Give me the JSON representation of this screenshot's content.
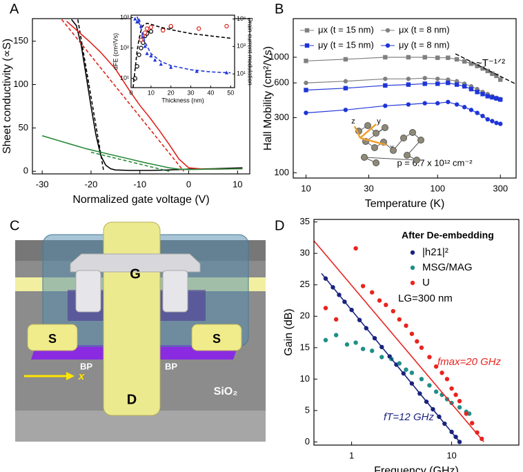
{
  "chart_data": [
    {
      "type": "line",
      "panel_label": "A",
      "xlabel": "Normalized gate voltage (V)",
      "ylabel": "Sheet conductivity (∝S)",
      "xlim": [
        -32,
        12.5
      ],
      "ylim": [
        -3,
        176
      ],
      "xticks": [
        -30,
        -20,
        -10,
        0,
        10
      ],
      "yticks": [
        0,
        50,
        100,
        150
      ],
      "series": [
        {
          "color": "#000000",
          "mode": "line",
          "x": [
            -24,
            -23,
            -22,
            -21,
            -20,
            -19,
            -18,
            -17,
            -16,
            -15,
            -12,
            -8,
            -4,
            0,
            5,
            11
          ],
          "values": [
            175,
            168,
            145,
            110,
            75,
            42,
            18,
            7,
            3,
            1.5,
            1,
            1,
            1.5,
            2.5,
            3,
            4
          ]
        },
        {
          "color": "#000000",
          "mode": "line",
          "dash": true,
          "x": [
            -22.7,
            -17.4
          ],
          "values": [
            175,
            0
          ]
        },
        {
          "color": "#e0201a",
          "mode": "line",
          "x": [
            -25,
            -22,
            -20,
            -18,
            -15,
            -12,
            -10,
            -8,
            -6,
            -4,
            -2,
            0,
            3,
            6,
            11
          ],
          "values": [
            173,
            158,
            148,
            137,
            118,
            92,
            76,
            62,
            47,
            31,
            14,
            4,
            2.5,
            2.5,
            3
          ]
        },
        {
          "color": "#e0201a",
          "mode": "line",
          "dash": true,
          "x": [
            -26,
            -1
          ],
          "values": [
            175,
            0
          ]
        },
        {
          "color": "#2a8a3a",
          "mode": "line",
          "x": [
            -30,
            -27,
            -24,
            -21,
            -18,
            -15,
            -12,
            -9,
            -6,
            -4,
            -2,
            0,
            5,
            11
          ],
          "values": [
            41,
            36,
            31,
            26,
            22,
            18,
            14,
            10,
            6.5,
            4,
            2.5,
            2,
            2.5,
            3
          ]
        },
        {
          "color": "#2a8a3a",
          "mode": "line",
          "dash": true,
          "x": [
            -20,
            -4
          ],
          "values": [
            22,
            0
          ]
        }
      ]
    },
    {
      "type": "scatter",
      "xlabel": "Thickness (nm)",
      "ylabel": "αFE (cm²/Vs)",
      "y2label": "Drain current modulation",
      "xlim": [
        0,
        52
      ],
      "ylim": [
        5,
        1200
      ],
      "y2lim": [
        1,
        190000
      ],
      "ylog": true,
      "y2log": true,
      "xticks": [
        0,
        10,
        20,
        30,
        40,
        50
      ],
      "yticks": [
        {
          "value": 10,
          "label": "10¹"
        },
        {
          "value": 100,
          "label": "10²"
        },
        {
          "value": 1000,
          "label": "10³"
        }
      ],
      "y2ticks": [
        {
          "value": 10,
          "label": "10¹"
        },
        {
          "value": 1000,
          "label": "10³"
        },
        {
          "value": 100000,
          "label": "10⁵"
        }
      ],
      "series": [
        {
          "color": "#000000",
          "mode": "markers",
          "marker": "open-circle",
          "x": [
            2,
            3,
            4,
            5,
            6,
            7,
            8,
            9,
            10,
            16,
            20
          ],
          "values": [
            10,
            25,
            60,
            100,
            150,
            250,
            300,
            400,
            350,
            400,
            500
          ]
        },
        {
          "color": "#000000",
          "mode": "line",
          "dash": true,
          "x": [
            1,
            2,
            3,
            4,
            5,
            6,
            8,
            10,
            15,
            20,
            30,
            40,
            50
          ],
          "values": [
            5,
            20,
            80,
            200,
            380,
            550,
            650,
            600,
            480,
            400,
            300,
            250,
            210
          ]
        },
        {
          "color": "#d8251f",
          "mode": "markers",
          "marker": "open-circle",
          "axis": "y2",
          "x": [
            5,
            6,
            7,
            8,
            10,
            16,
            20,
            34,
            48
          ],
          "values": [
            3000,
            6000,
            10000,
            20000,
            25000,
            15000,
            30000,
            20000,
            30000
          ]
        },
        {
          "color": "#1f35d6",
          "mode": "markers",
          "marker": "triangle",
          "axis": "y2",
          "x": [
            2,
            3,
            4,
            5,
            6,
            7,
            8,
            10,
            12,
            15,
            20,
            33,
            48
          ],
          "values": [
            100000,
            60000,
            80000,
            30000,
            5000,
            1000,
            300,
            200,
            100,
            50,
            30,
            15,
            12
          ]
        },
        {
          "color": "#1f35d6",
          "mode": "line",
          "dash": true,
          "axis": "y2",
          "x": [
            3,
            5,
            7,
            10,
            15,
            20,
            30,
            40,
            50
          ],
          "values": [
            150000,
            20000,
            2000,
            300,
            80,
            40,
            20,
            14,
            12
          ]
        }
      ]
    },
    {
      "type": "line",
      "panel_label": "B",
      "xlabel": "Temperature (K)",
      "ylabel": "Hall Mobility (cm²/Vs)",
      "xlim": [
        8,
        395
      ],
      "ylim": [
        90,
        2160
      ],
      "xlog": true,
      "ylog": true,
      "xticks": [
        10,
        30,
        100,
        300
      ],
      "yticks": [
        100,
        300,
        600,
        1000
      ],
      "legend": "upper left",
      "annotations": [
        "~T⁻¹ᐟ²",
        "p = 6.7 x 10¹² cm⁻²",
        "z",
        "y",
        "x"
      ],
      "series": [
        {
          "name": "μx (t = 15 nm)",
          "color": "#808080",
          "mode": "markers",
          "marker": "square",
          "line": true,
          "x": [
            10,
            20,
            40,
            60,
            80,
            100,
            120,
            140,
            160,
            180,
            200,
            220,
            240,
            260,
            280,
            300
          ],
          "values": [
            930,
            960,
            1000,
            1000,
            1000,
            990,
            990,
            960,
            920,
            880,
            840,
            800,
            760,
            720,
            690,
            640
          ]
        },
        {
          "name": "μx (t = 8 nm)",
          "color": "#808080",
          "mode": "markers",
          "marker": "circle",
          "line": true,
          "x": [
            10,
            20,
            40,
            60,
            80,
            100,
            120,
            140,
            160,
            180,
            200,
            220,
            240,
            260,
            280,
            300
          ],
          "values": [
            600,
            620,
            650,
            650,
            660,
            650,
            640,
            620,
            590,
            560,
            530,
            500,
            480,
            460,
            445,
            435
          ]
        },
        {
          "name": "μy (t = 15 nm)",
          "color": "#1f35d6",
          "mode": "markers",
          "marker": "square",
          "line": true,
          "x": [
            10,
            20,
            40,
            60,
            80,
            100,
            120,
            140,
            160,
            180,
            200,
            220,
            240,
            260,
            280,
            300
          ],
          "values": [
            520,
            540,
            570,
            580,
            590,
            590,
            600,
            580,
            560,
            530,
            500,
            480,
            460,
            450,
            440,
            430
          ]
        },
        {
          "name": "μy (t = 8 nm)",
          "color": "#1f35d6",
          "mode": "markers",
          "marker": "circle",
          "line": true,
          "x": [
            10,
            20,
            40,
            60,
            80,
            100,
            120,
            140,
            160,
            180,
            200,
            220,
            240,
            260,
            280,
            300
          ],
          "values": [
            330,
            350,
            380,
            390,
            400,
            400,
            410,
            390,
            370,
            350,
            330,
            310,
            290,
            280,
            270,
            265
          ]
        }
      ]
    },
    {
      "type": "scatter",
      "panel_label": "D",
      "xlabel": "Frequency (GHz)",
      "ylabel": "Gain (dB)",
      "xlim": [
        0.42,
        47
      ],
      "ylim": [
        -0.5,
        35.4
      ],
      "xlog": true,
      "xticks": [
        1,
        10
      ],
      "yticks": [
        0,
        5,
        10,
        15,
        20,
        25,
        30,
        35
      ],
      "legend": "upper right",
      "legend_title": "After De-embedding",
      "annotations": [
        "LG=300 nm",
        "fmax=20 GHz",
        "fT=12 GHz"
      ],
      "series": [
        {
          "name": "|h21|²",
          "color": "#1a237e",
          "mode": "markers",
          "marker": "circle",
          "x": [
            0.55,
            0.65,
            0.75,
            0.85,
            1,
            1.2,
            1.4,
            1.7,
            2,
            2.4,
            2.8,
            3.3,
            4,
            4.8,
            5.6,
            6.5,
            7.5,
            8.5,
            10,
            11,
            12
          ],
          "values": [
            26,
            24.6,
            23.4,
            22.3,
            21,
            19.4,
            18.1,
            16.5,
            15.1,
            13.6,
            12.3,
            10.9,
            9.3,
            7.7,
            6.4,
            5.2,
            4,
            2.9,
            1.6,
            0.8,
            0
          ]
        },
        {
          "name": "MSG/MAG",
          "color": "#1e8f86",
          "mode": "markers",
          "marker": "circle",
          "x": [
            0.55,
            0.7,
            0.9,
            1.1,
            1.3,
            1.6,
            2,
            2.5,
            3,
            3.5,
            4,
            5,
            6,
            7,
            8,
            9,
            10,
            12,
            14,
            15
          ],
          "values": [
            16.2,
            17,
            15.5,
            15.8,
            14.8,
            14.5,
            13.5,
            13.2,
            12.5,
            11.5,
            11,
            10,
            9,
            8,
            7.5,
            6.8,
            6.2,
            5.5,
            4.8,
            4.5
          ]
        },
        {
          "name": "U",
          "color": "#e8241f",
          "mode": "markers",
          "marker": "circle",
          "x": [
            0.55,
            0.7,
            1.1,
            1.3,
            1.6,
            1.9,
            2.2,
            2.6,
            3,
            3.5,
            4,
            4.5,
            5,
            6,
            7,
            8,
            9,
            10,
            11,
            12,
            14,
            16,
            18,
            20
          ],
          "values": [
            21.3,
            19.5,
            30.8,
            24.8,
            23.8,
            22.5,
            21.8,
            20.8,
            19.5,
            18.5,
            17.2,
            16,
            15,
            13.5,
            12,
            11,
            10,
            8.5,
            7.5,
            6.5,
            4.5,
            3,
            1.5,
            0.5
          ]
        },
        {
          "color": "#1a237e",
          "mode": "line",
          "x": [
            0.5,
            12
          ],
          "values": [
            26.8,
            0
          ]
        },
        {
          "color": "#e8241f",
          "mode": "line",
          "x": [
            0.42,
            21
          ],
          "values": [
            32,
            0
          ]
        }
      ]
    }
  ],
  "diagram": {
    "panel_label": "C",
    "labels": [
      "G",
      "S",
      "S",
      "BP",
      "BP",
      "D",
      "SiO₂",
      "x"
    ]
  }
}
